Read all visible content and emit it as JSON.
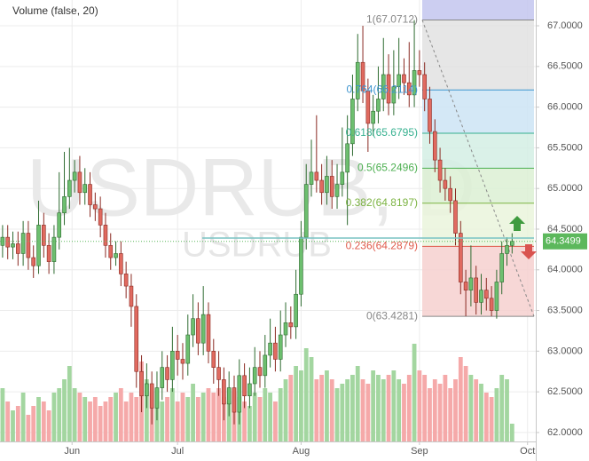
{
  "chart_data": {
    "type": "candlestick",
    "legend_text": "Volume (false, 20)",
    "watermark": "USDRUB, D",
    "watermark_symbol": "USDRUB",
    "ylim": [
      61.89,
      67.317
    ],
    "yticks": [
      {
        "value": 62,
        "label": "62.0000"
      },
      {
        "value": 62.5,
        "label": "62.5000"
      },
      {
        "value": 63,
        "label": "63.0000"
      },
      {
        "value": 63.5,
        "label": "63.5000"
      },
      {
        "value": 64,
        "label": "64.0000"
      },
      {
        "value": 64.5,
        "label": "64.5000"
      },
      {
        "value": 65,
        "label": "65.0000"
      },
      {
        "value": 65.5,
        "label": "65.5000"
      },
      {
        "value": 66,
        "label": "66.0000"
      },
      {
        "value": 66.5,
        "label": "66.5000"
      },
      {
        "value": 67,
        "label": "67.0000"
      }
    ],
    "xlim": [
      -0.5,
      103.6
    ],
    "xticks": [
      {
        "value": 13.5,
        "label": "Jun"
      },
      {
        "value": 34,
        "label": "Jul"
      },
      {
        "value": 58,
        "label": "Aug"
      },
      {
        "value": 81,
        "label": "Sep"
      },
      {
        "value": 102,
        "label": "Oct"
      }
    ],
    "grid": true,
    "up_color": "#6dbf6f",
    "up_border": "#2e6b30",
    "down_color": "#e06a60",
    "down_border": "#8a2a22",
    "volume_up_color": "#a3d6a0",
    "volume_down_color": "#f5a9a9",
    "open": [
      64.3,
      64.4,
      64.28,
      64.32,
      64.2,
      64.45,
      64.15,
      64.05,
      64.55,
      64.3,
      64.1,
      64.4,
      64.7,
      64.9,
      65.1,
      65.2,
      64.95,
      65.05,
      64.8,
      64.75,
      64.55,
      64.3,
      64.15,
      64.2,
      63.95,
      63.8,
      63.55,
      62.75,
      62.45,
      62.6,
      62.3,
      62.55,
      62.8,
      62.65,
      63.0,
      62.9,
      62.85,
      63.2,
      63.4,
      63.1,
      63.45,
      63.0,
      62.8,
      62.65,
      62.35,
      62.55,
      62.25,
      62.7,
      62.45,
      62.6,
      62.8,
      62.7,
      62.95,
      63.1,
      62.9,
      63.2,
      63.35,
      63.3,
      63.7,
      64.4,
      65.05,
      65.2,
      65.1,
      64.95,
      65.15,
      64.9,
      65.05,
      65.2,
      65.55,
      66.1,
      66.55,
      66.2,
      65.8,
      65.95,
      66.1,
      66.4,
      66.05,
      66.25,
      66.4,
      66.3,
      66.15,
      66.45,
      66.4,
      66.1,
      65.7,
      65.35,
      65.1,
      65.0,
      64.85,
      64.45,
      63.85,
      63.75,
      63.9,
      63.6,
      63.75,
      63.65,
      63.5,
      63.85,
      64.2,
      64.3
    ],
    "high": [
      64.55,
      64.55,
      64.47,
      64.47,
      64.6,
      64.6,
      64.3,
      64.85,
      64.7,
      64.45,
      64.55,
      65.2,
      65.45,
      65.5,
      65.35,
      65.4,
      65.25,
      65.2,
      64.95,
      64.9,
      64.7,
      64.45,
      64.35,
      64.35,
      64.1,
      63.95,
      63.7,
      62.95,
      62.85,
      62.75,
      62.75,
      63.0,
      62.95,
      63.3,
      63.2,
      63.1,
      63.45,
      63.7,
      63.6,
      63.8,
      63.6,
      63.15,
      63.0,
      62.8,
      62.75,
      62.7,
      62.9,
      62.85,
      62.8,
      63.05,
      63.0,
      63.2,
      63.4,
      63.3,
      63.5,
      63.6,
      63.55,
      64.0,
      64.6,
      65.3,
      65.6,
      65.9,
      65.3,
      65.4,
      65.35,
      65.3,
      65.75,
      65.9,
      66.4,
      66.9,
      67.0,
      66.35,
      66.15,
      66.5,
      66.85,
      66.65,
      66.7,
      66.85,
      66.6,
      66.8,
      67.07,
      66.7,
      66.55,
      66.25,
      65.85,
      65.5,
      65.25,
      65.15,
      65.0,
      64.6,
      64.0,
      64.3,
      64.05,
      63.95,
      63.9,
      63.8,
      64.0,
      64.35,
      64.4,
      64.45
    ],
    "low": [
      64.15,
      64.13,
      64.13,
      64.05,
      64.05,
      64.0,
      63.9,
      63.95,
      64.15,
      63.95,
      63.95,
      64.25,
      64.55,
      64.75,
      64.95,
      64.8,
      64.8,
      64.65,
      64.6,
      64.4,
      64.15,
      64.0,
      64.05,
      63.8,
      63.65,
      63.3,
      62.55,
      62.25,
      62.3,
      62.1,
      62.15,
      62.4,
      62.5,
      62.5,
      62.7,
      62.65,
      62.7,
      63.05,
      62.95,
      62.95,
      62.85,
      62.6,
      62.45,
      62.15,
      62.2,
      62.1,
      62.1,
      62.3,
      62.3,
      62.45,
      62.55,
      62.55,
      62.8,
      62.75,
      62.75,
      63.05,
      63.15,
      63.15,
      63.55,
      64.25,
      64.9,
      64.95,
      64.8,
      64.8,
      64.75,
      64.75,
      64.9,
      64.55,
      65.4,
      65.95,
      66.05,
      65.45,
      65.65,
      65.8,
      65.95,
      65.9,
      65.9,
      66.1,
      66.15,
      66.0,
      66.0,
      66.25,
      65.95,
      65.55,
      65.2,
      64.95,
      64.85,
      64.7,
      64.3,
      63.7,
      63.43,
      63.55,
      63.45,
      63.45,
      63.5,
      63.43,
      63.4,
      63.7,
      64.05,
      64.2
    ],
    "close": [
      64.4,
      64.28,
      64.32,
      64.2,
      64.45,
      64.15,
      64.05,
      64.55,
      64.3,
      64.1,
      64.4,
      64.7,
      64.9,
      65.1,
      65.2,
      64.95,
      65.05,
      64.8,
      64.75,
      64.55,
      64.3,
      64.15,
      64.2,
      63.95,
      63.8,
      63.55,
      62.75,
      62.45,
      62.6,
      62.3,
      62.55,
      62.8,
      62.65,
      63.0,
      62.9,
      62.85,
      63.2,
      63.4,
      63.1,
      63.45,
      63.0,
      62.8,
      62.65,
      62.35,
      62.55,
      62.25,
      62.7,
      62.45,
      62.6,
      62.8,
      62.7,
      62.95,
      63.1,
      62.9,
      63.2,
      63.35,
      63.3,
      63.7,
      64.4,
      65.05,
      65.2,
      65.1,
      64.95,
      65.15,
      64.9,
      65.05,
      65.2,
      65.55,
      66.1,
      66.55,
      66.2,
      65.8,
      65.95,
      66.1,
      66.4,
      66.05,
      66.25,
      66.4,
      66.3,
      66.15,
      66.45,
      66.4,
      66.1,
      65.7,
      65.35,
      65.1,
      65.0,
      64.85,
      64.45,
      63.85,
      63.75,
      63.9,
      63.6,
      63.75,
      63.65,
      63.5,
      63.85,
      64.2,
      64.3,
      64.35
    ],
    "volume": [
      60,
      45,
      35,
      40,
      55,
      30,
      40,
      50,
      45,
      35,
      55,
      60,
      70,
      85,
      60,
      55,
      50,
      45,
      50,
      40,
      45,
      50,
      55,
      60,
      45,
      55,
      50,
      90,
      70,
      55,
      60,
      45,
      50,
      60,
      45,
      55,
      50,
      65,
      50,
      55,
      60,
      55,
      60,
      50,
      45,
      55,
      50,
      45,
      40,
      55,
      50,
      60,
      55,
      45,
      60,
      70,
      75,
      85,
      80,
      105,
      95,
      70,
      75,
      80,
      70,
      60,
      65,
      70,
      75,
      85,
      70,
      65,
      80,
      75,
      70,
      75,
      80,
      70,
      65,
      75,
      110,
      80,
      75,
      60,
      70,
      65,
      75,
      60,
      70,
      95,
      85,
      75,
      70,
      65,
      55,
      50,
      60,
      75,
      70,
      20
    ],
    "fib_top_color": "#c3c6ef",
    "fib_levels": [
      {
        "label": "1(67.0712)",
        "value": 67.0712,
        "color": "#888888",
        "band_color": "#e2e2e2"
      },
      {
        "label": "0.764(66.2114)",
        "value": 66.2114,
        "color": "#3d95cf",
        "band_color": "#cde4f4"
      },
      {
        "label": "0.618(65.6795)",
        "value": 65.6795,
        "color": "#35b08f",
        "band_color": "#d3efe4"
      },
      {
        "label": "0.5(65.2496)",
        "value": 65.2496,
        "color": "#4caf50",
        "band_color": "#dcf0d4"
      },
      {
        "label": "0.382(64.8197)",
        "value": 64.8197,
        "color": "#7cb342",
        "band_color": "#eaf5dc"
      },
      {
        "label": "0.236(64.2879)",
        "value": 64.2879,
        "color": "#e05b4b",
        "band_color": "#f6d0cf"
      },
      {
        "label": "0(63.4281)",
        "value": 63.4281,
        "color": "#888888"
      }
    ],
    "horizontal_line": 64.39,
    "horizontal_line_color": "#78c4c4",
    "last_price": 64.3499,
    "last_price_color": "#5cb85c"
  }
}
